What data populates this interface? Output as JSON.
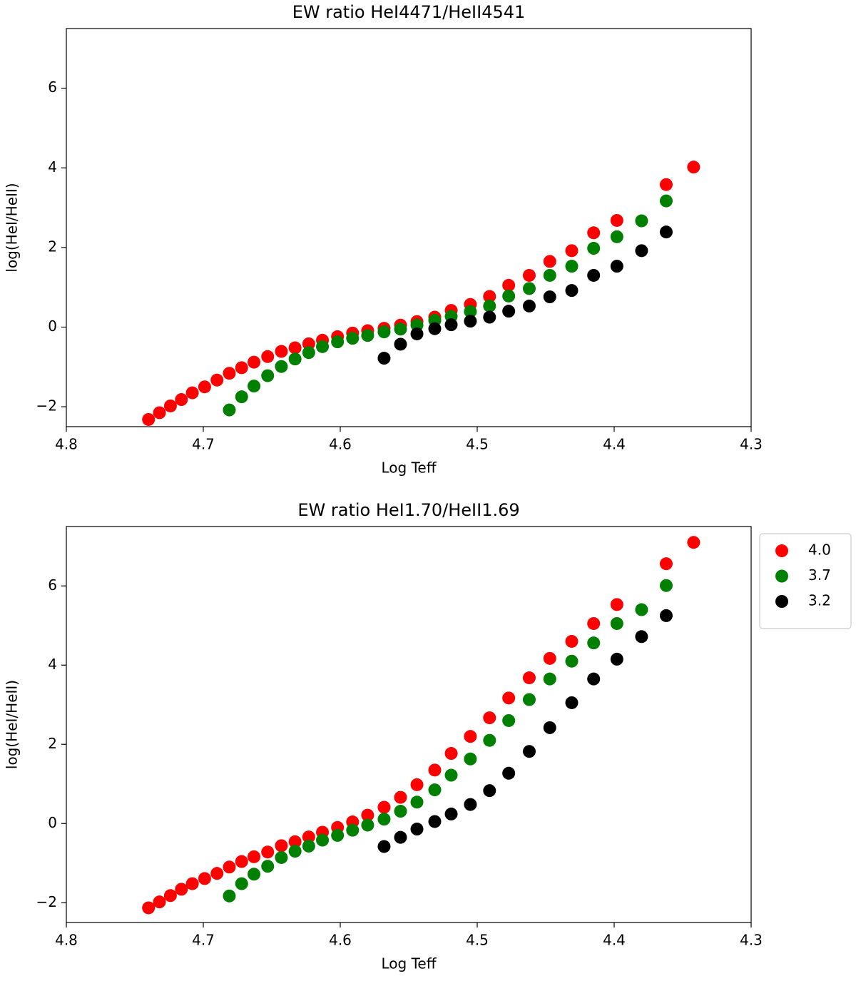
{
  "chart_data": [
    {
      "type": "scatter",
      "title": "EW ratio HeI4471/HeII4541",
      "xlabel": "Log Teff",
      "ylabel": "log(HeI/HeII)",
      "xlim": [
        4.8,
        4.3
      ],
      "ylim": [
        -2.5,
        7.5
      ],
      "xticks": [
        4.8,
        4.7,
        4.6,
        4.5,
        4.4,
        4.3
      ],
      "yticks": [
        {
          "value": -2,
          "label": "−2"
        },
        0,
        2,
        4,
        6
      ],
      "series": [
        {
          "color": "#ff0000",
          "x": [
            4.74,
            4.732,
            4.724,
            4.716,
            4.708,
            4.699,
            4.69,
            4.681,
            4.672,
            4.663,
            4.653,
            4.643,
            4.633,
            4.623,
            4.613,
            4.602,
            4.591,
            4.58,
            4.568,
            4.556,
            4.544,
            4.531,
            4.519,
            4.505,
            4.491,
            4.477,
            4.462,
            4.447,
            4.431,
            4.415,
            4.398,
            4.362,
            4.342
          ],
          "values": [
            -2.32,
            -2.15,
            -1.98,
            -1.82,
            -1.65,
            -1.5,
            -1.33,
            -1.16,
            -1.02,
            -0.88,
            -0.74,
            -0.61,
            -0.52,
            -0.42,
            -0.33,
            -0.24,
            -0.15,
            -0.09,
            -0.03,
            0.05,
            0.14,
            0.25,
            0.42,
            0.57,
            0.77,
            1.05,
            1.3,
            1.65,
            1.92,
            2.37,
            2.68,
            3.58,
            4.02
          ]
        },
        {
          "color": "#008000",
          "x": [
            4.681,
            4.672,
            4.663,
            4.653,
            4.643,
            4.633,
            4.623,
            4.613,
            4.602,
            4.591,
            4.58,
            4.568,
            4.556,
            4.544,
            4.531,
            4.519,
            4.505,
            4.491,
            4.477,
            4.462,
            4.447,
            4.431,
            4.415,
            4.398,
            4.38,
            4.362
          ],
          "values": [
            -2.08,
            -1.75,
            -1.48,
            -1.22,
            -0.99,
            -0.8,
            -0.64,
            -0.49,
            -0.37,
            -0.28,
            -0.21,
            -0.12,
            -0.05,
            0.05,
            0.17,
            0.27,
            0.39,
            0.53,
            0.78,
            0.97,
            1.3,
            1.53,
            1.98,
            2.27,
            2.67,
            3.17
          ]
        },
        {
          "color": "#000000",
          "x": [
            4.568,
            4.556,
            4.544,
            4.531,
            4.519,
            4.505,
            4.491,
            4.477,
            4.462,
            4.447,
            4.431,
            4.415,
            4.398,
            4.38,
            4.362
          ],
          "values": [
            -0.78,
            -0.43,
            -0.17,
            -0.04,
            0.06,
            0.15,
            0.25,
            0.4,
            0.53,
            0.76,
            0.92,
            1.3,
            1.53,
            1.92,
            2.39
          ]
        }
      ]
    },
    {
      "type": "scatter",
      "title": "EW ratio HeI1.70/HeII1.69",
      "xlabel": "Log Teff",
      "ylabel": "log(HeI/HeII)",
      "xlim": [
        4.8,
        4.3
      ],
      "ylim": [
        -2.5,
        7.5
      ],
      "xticks": [
        4.8,
        4.7,
        4.6,
        4.5,
        4.4,
        4.3
      ],
      "yticks": [
        {
          "value": -2,
          "label": "−2"
        },
        0,
        2,
        4,
        6
      ],
      "legend": "outside right",
      "series": [
        {
          "name": "4.0",
          "color": "#ff0000",
          "x": [
            4.74,
            4.732,
            4.724,
            4.716,
            4.708,
            4.699,
            4.69,
            4.681,
            4.672,
            4.663,
            4.653,
            4.643,
            4.633,
            4.623,
            4.613,
            4.602,
            4.591,
            4.58,
            4.568,
            4.556,
            4.544,
            4.531,
            4.519,
            4.505,
            4.491,
            4.477,
            4.462,
            4.447,
            4.431,
            4.415,
            4.398,
            4.362,
            4.342
          ],
          "values": [
            -2.13,
            -1.98,
            -1.82,
            -1.66,
            -1.52,
            -1.39,
            -1.26,
            -1.1,
            -0.96,
            -0.84,
            -0.72,
            -0.56,
            -0.46,
            -0.34,
            -0.22,
            -0.1,
            0.04,
            0.21,
            0.41,
            0.66,
            0.98,
            1.35,
            1.77,
            2.2,
            2.67,
            3.17,
            3.68,
            4.17,
            4.6,
            5.05,
            5.53,
            6.56,
            7.1
          ]
        },
        {
          "name": "3.7",
          "color": "#008000",
          "x": [
            4.681,
            4.672,
            4.663,
            4.653,
            4.643,
            4.633,
            4.623,
            4.613,
            4.602,
            4.591,
            4.58,
            4.568,
            4.556,
            4.544,
            4.531,
            4.519,
            4.505,
            4.491,
            4.477,
            4.462,
            4.447,
            4.431,
            4.415,
            4.398,
            4.38,
            4.362
          ],
          "values": [
            -1.83,
            -1.52,
            -1.28,
            -1.08,
            -0.86,
            -0.7,
            -0.57,
            -0.42,
            -0.3,
            -0.17,
            -0.04,
            0.11,
            0.31,
            0.54,
            0.85,
            1.22,
            1.63,
            2.1,
            2.6,
            3.13,
            3.65,
            4.1,
            4.56,
            5.05,
            5.4,
            6.01
          ]
        },
        {
          "name": "3.2",
          "color": "#000000",
          "x": [
            4.568,
            4.556,
            4.544,
            4.531,
            4.519,
            4.505,
            4.491,
            4.477,
            4.462,
            4.447,
            4.431,
            4.415,
            4.398,
            4.38,
            4.362
          ],
          "values": [
            -0.58,
            -0.35,
            -0.14,
            0.05,
            0.24,
            0.48,
            0.83,
            1.27,
            1.82,
            2.42,
            3.05,
            3.65,
            4.15,
            4.72,
            5.25
          ]
        }
      ]
    }
  ]
}
